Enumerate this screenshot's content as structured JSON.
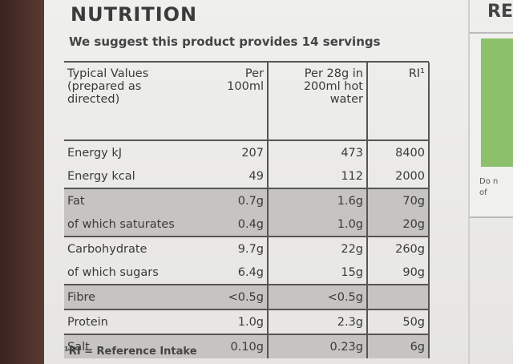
{
  "title": "NUTRITION",
  "subtitle": "We suggest this product provides 14 servings",
  "table": {
    "header": [
      "Typical Values (prepared as directed)",
      "Per 100ml",
      "Per 28g in 200ml hot water",
      "RI¹"
    ],
    "rows": [
      [
        "Energy kJ",
        "207",
        "473",
        "8400"
      ],
      [
        "Energy kcal",
        "49",
        "112",
        "2000"
      ],
      [
        "Fat",
        "0.7g",
        "1.6g",
        "70g"
      ],
      [
        "of which saturates",
        "0.4g",
        "1.0g",
        "20g"
      ],
      [
        "Carbohydrate",
        "9.7g",
        "22g",
        "260g"
      ],
      [
        "of which sugars",
        "6.4g",
        "15g",
        "90g"
      ],
      [
        "Fibre",
        "<0.5g",
        "<0.5g"
      ],
      [
        "Protein",
        "1.0g",
        "2.3g",
        "50g"
      ],
      [
        "Salt",
        "0.10g",
        "0.23g",
        "6g"
      ]
    ]
  },
  "footnote": "¹RI = Reference Intake",
  "side_panel": {
    "heading": "RE",
    "note_lines": [
      "Do n",
      "of"
    ]
  }
}
